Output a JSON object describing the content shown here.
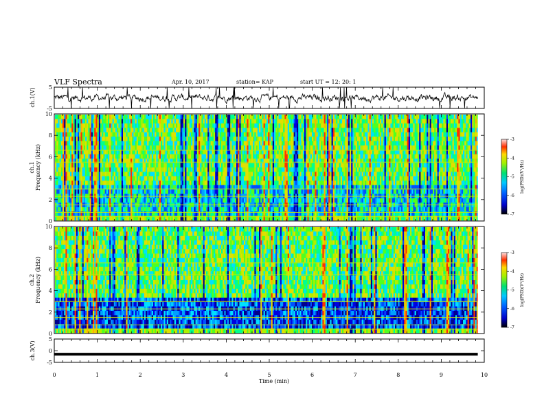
{
  "header": {
    "title": "VLF Spectra",
    "date": "Apr. 10, 2017",
    "station": "station= KAP",
    "start_ut": "start  UT =   12: 20: 1"
  },
  "chart_data": [
    {
      "type": "line",
      "panel": "ch1-waveform",
      "ylabel": "ch.1(V)",
      "ylim": [
        -5,
        5
      ],
      "yticks": [
        "5",
        "-5"
      ],
      "xlim": [
        0,
        10
      ],
      "description_values": "noisy waveform centered near 0 V, amplitude mostly within ±2 V with occasional spikes"
    },
    {
      "type": "heatmap",
      "panel": "ch1-spectrogram",
      "ylabel": "ch.1\nFrequency (kHz)",
      "ylabel_line1": "ch.1",
      "ylabel_line2": "Frequency (kHz)",
      "ylim": [
        0,
        10
      ],
      "yticks": [
        "0",
        "2",
        "4",
        "6",
        "8",
        "10"
      ],
      "xlim": [
        0,
        10
      ],
      "colorbar": {
        "label": "log(PSD)(V²/Hz)",
        "range": [
          -7,
          -3
        ],
        "ticks": [
          "-3",
          "-4",
          "-5",
          "-6",
          "-7"
        ]
      }
    },
    {
      "type": "heatmap",
      "panel": "ch2-spectrogram",
      "ylabel_line1": "ch.2",
      "ylabel_line2": "Frequency (kHz)",
      "ylim": [
        0,
        10
      ],
      "yticks": [
        "0",
        "2",
        "4",
        "6",
        "8",
        "10"
      ],
      "xlim": [
        0,
        10
      ],
      "colorbar": {
        "label": "log(PSD)(V²/Hz)",
        "range": [
          -7,
          -3
        ],
        "ticks": [
          "-3",
          "-4",
          "-5",
          "-6",
          "-7"
        ]
      }
    },
    {
      "type": "line",
      "panel": "ch3-waveform",
      "ylabel": "ch.3(V)",
      "ylim": [
        -5,
        5
      ],
      "yticks": [
        "5",
        "0",
        "-5"
      ],
      "xlim": [
        0,
        10
      ],
      "constant_value": -1.5
    }
  ],
  "xaxis": {
    "label": "Time  (min)",
    "ticks": [
      "0",
      "1",
      "2",
      "3",
      "4",
      "5",
      "6",
      "7",
      "8",
      "9",
      "10"
    ],
    "range": [
      0,
      10
    ]
  }
}
